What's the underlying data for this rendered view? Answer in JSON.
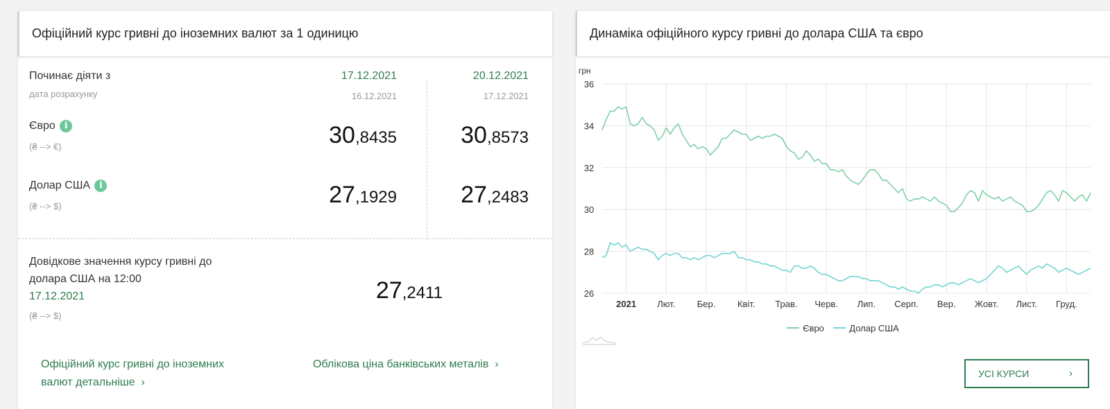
{
  "left": {
    "title": "Офіційний курс гривні до іноземних валют за 1 одиницю",
    "starts_label": "Починає діяти з",
    "calc_label": "дата розрахунку",
    "col1": {
      "date": "17.12.2021",
      "calc_date": "16.12.2021"
    },
    "col2": {
      "date": "20.12.2021",
      "calc_date": "17.12.2021"
    },
    "rows": [
      {
        "name": "Євро",
        "sub": "(₴ --> €)",
        "info_icon": "i",
        "v1_int": "30",
        "v1_frac": ",8435",
        "v2_int": "30",
        "v2_frac": ",8573"
      },
      {
        "name": "Долар США",
        "sub": "(₴ --> $)",
        "info_icon": "i",
        "v1_int": "27",
        "v1_frac": ",1929",
        "v2_int": "27",
        "v2_frac": ",2483"
      }
    ],
    "ref": {
      "line1": "Довідкове значення курсу гривні до",
      "line2": "долара США на 12:00",
      "date": "17.12.2021",
      "sub": "(₴ --> $)",
      "value_int": "27",
      "value_frac": ",2411"
    },
    "links": {
      "detail_line1": "Офіційний курс гривні до іноземних",
      "detail_line2": "валют детальніше",
      "metals": "Облікова ціна банківських металів",
      "chevron": "›"
    }
  },
  "right": {
    "title": "Динаміка офіційного курсу гривні до долара США та євро",
    "all_rates_button": "УСІ КУРСИ",
    "chevron": "›"
  },
  "colors": {
    "accent": "#2e7d4f",
    "euro_line": "#7fcfa8",
    "usd_line": "#72d4cf",
    "info": "#6cc89a"
  },
  "chart_data": {
    "type": "line",
    "ylabel": "грн",
    "ylim": [
      26,
      36
    ],
    "yticks": [
      26,
      28,
      30,
      32,
      34,
      36
    ],
    "x_tick_labels": [
      "2021",
      "Лют.",
      "Бер.",
      "Квіт.",
      "Трав.",
      "Черв.",
      "Лип.",
      "Серп.",
      "Вер.",
      "Жовт.",
      "Лист.",
      "Груд."
    ],
    "x_range_months": [
      -0.6,
      11.6
    ],
    "grid": true,
    "legend_position": "bottom",
    "series": [
      {
        "name": "Євро",
        "color": "#7fcfa8",
        "x": [
          -0.6,
          -0.5,
          -0.4,
          -0.3,
          -0.2,
          -0.1,
          0.0,
          0.1,
          0.2,
          0.3,
          0.4,
          0.5,
          0.6,
          0.7,
          0.8,
          0.9,
          1.0,
          1.1,
          1.2,
          1.3,
          1.4,
          1.5,
          1.6,
          1.7,
          1.8,
          1.9,
          2.0,
          2.1,
          2.2,
          2.3,
          2.4,
          2.5,
          2.6,
          2.7,
          2.8,
          2.9,
          3.0,
          3.1,
          3.2,
          3.3,
          3.4,
          3.5,
          3.6,
          3.7,
          3.8,
          3.9,
          4.0,
          4.1,
          4.2,
          4.3,
          4.4,
          4.5,
          4.6,
          4.7,
          4.8,
          4.9,
          5.0,
          5.1,
          5.2,
          5.3,
          5.4,
          5.5,
          5.6,
          5.7,
          5.8,
          5.9,
          6.0,
          6.1,
          6.2,
          6.3,
          6.4,
          6.5,
          6.6,
          6.7,
          6.8,
          6.9,
          7.0,
          7.1,
          7.2,
          7.3,
          7.4,
          7.5,
          7.6,
          7.7,
          7.8,
          7.9,
          8.0,
          8.1,
          8.2,
          8.3,
          8.4,
          8.5,
          8.6,
          8.7,
          8.8,
          8.9,
          9.0,
          9.1,
          9.2,
          9.3,
          9.4,
          9.5,
          9.6,
          9.7,
          9.8,
          9.9,
          10.0,
          10.1,
          10.2,
          10.3,
          10.4,
          10.5,
          10.6,
          10.7,
          10.8,
          10.9,
          11.0,
          11.1,
          11.2,
          11.3,
          11.4,
          11.5,
          11.6
        ],
        "values": [
          33.8,
          34.3,
          34.7,
          34.7,
          34.9,
          34.8,
          34.9,
          34.1,
          34.0,
          34.1,
          34.4,
          34.1,
          34.0,
          33.8,
          33.3,
          33.5,
          33.9,
          33.6,
          33.9,
          34.1,
          33.6,
          33.3,
          33.0,
          33.1,
          32.9,
          33.0,
          32.9,
          32.6,
          32.8,
          33.0,
          33.4,
          33.4,
          33.6,
          33.8,
          33.7,
          33.6,
          33.6,
          33.3,
          33.4,
          33.5,
          33.4,
          33.5,
          33.5,
          33.6,
          33.5,
          33.4,
          33.0,
          32.8,
          32.7,
          32.4,
          32.5,
          32.8,
          32.6,
          32.3,
          32.4,
          32.2,
          32.2,
          31.9,
          31.9,
          31.8,
          31.9,
          31.6,
          31.4,
          31.3,
          31.2,
          31.4,
          31.7,
          31.9,
          31.9,
          31.7,
          31.4,
          31.4,
          31.2,
          31.0,
          30.8,
          31.0,
          30.5,
          30.4,
          30.5,
          30.5,
          30.6,
          30.5,
          30.4,
          30.6,
          30.4,
          30.3,
          30.2,
          29.9,
          29.9,
          30.1,
          30.3,
          30.7,
          30.9,
          30.8,
          30.4,
          30.9,
          30.7,
          30.6,
          30.5,
          30.6,
          30.4,
          30.5,
          30.6,
          30.4,
          30.3,
          30.2,
          29.9,
          29.9,
          30.0,
          30.2,
          30.5,
          30.8,
          30.9,
          30.7,
          30.4,
          30.9,
          30.8,
          30.6,
          30.4,
          30.6,
          30.7,
          30.4,
          30.8
        ]
      },
      {
        "name": "Долар США",
        "color": "#72d4cf",
        "x": [
          -0.6,
          -0.5,
          -0.4,
          -0.3,
          -0.2,
          -0.1,
          0.0,
          0.1,
          0.2,
          0.3,
          0.4,
          0.5,
          0.6,
          0.7,
          0.8,
          0.9,
          1.0,
          1.1,
          1.2,
          1.3,
          1.4,
          1.5,
          1.6,
          1.7,
          1.8,
          1.9,
          2.0,
          2.1,
          2.2,
          2.3,
          2.4,
          2.5,
          2.6,
          2.7,
          2.8,
          2.9,
          3.0,
          3.1,
          3.2,
          3.3,
          3.4,
          3.5,
          3.6,
          3.7,
          3.8,
          3.9,
          4.0,
          4.1,
          4.2,
          4.3,
          4.4,
          4.5,
          4.6,
          4.7,
          4.8,
          4.9,
          5.0,
          5.1,
          5.2,
          5.3,
          5.4,
          5.5,
          5.6,
          5.7,
          5.8,
          5.9,
          6.0,
          6.1,
          6.2,
          6.3,
          6.4,
          6.5,
          6.6,
          6.7,
          6.8,
          6.9,
          7.0,
          7.1,
          7.2,
          7.3,
          7.4,
          7.5,
          7.6,
          7.7,
          7.8,
          7.9,
          8.0,
          8.1,
          8.2,
          8.3,
          8.4,
          8.5,
          8.6,
          8.7,
          8.8,
          8.9,
          9.0,
          9.1,
          9.2,
          9.3,
          9.4,
          9.5,
          9.6,
          9.7,
          9.8,
          9.9,
          10.0,
          10.1,
          10.2,
          10.3,
          10.4,
          10.5,
          10.6,
          10.7,
          10.8,
          10.9,
          11.0,
          11.1,
          11.2,
          11.3,
          11.4,
          11.5,
          11.6
        ],
        "values": [
          27.7,
          27.8,
          28.4,
          28.3,
          28.4,
          28.2,
          28.3,
          28.0,
          28.1,
          28.2,
          28.1,
          28.1,
          28.0,
          27.9,
          27.6,
          27.8,
          27.9,
          27.8,
          27.9,
          27.9,
          27.7,
          27.7,
          27.6,
          27.7,
          27.6,
          27.7,
          27.8,
          27.8,
          27.7,
          27.8,
          27.9,
          27.9,
          27.9,
          28.0,
          27.7,
          27.7,
          27.6,
          27.6,
          27.5,
          27.5,
          27.4,
          27.4,
          27.3,
          27.3,
          27.2,
          27.1,
          27.1,
          27.0,
          27.3,
          27.3,
          27.2,
          27.2,
          27.3,
          27.2,
          27.0,
          26.9,
          26.9,
          26.8,
          26.7,
          26.6,
          26.6,
          26.7,
          26.8,
          26.8,
          26.8,
          26.7,
          26.7,
          26.6,
          26.6,
          26.6,
          26.5,
          26.4,
          26.3,
          26.3,
          26.2,
          26.3,
          26.2,
          26.1,
          26.1,
          26.0,
          26.2,
          26.3,
          26.3,
          26.4,
          26.4,
          26.3,
          26.4,
          26.5,
          26.5,
          26.4,
          26.5,
          26.6,
          26.7,
          26.6,
          26.5,
          26.6,
          26.7,
          26.9,
          27.1,
          27.3,
          27.2,
          27.0,
          27.1,
          27.2,
          27.3,
          27.1,
          26.9,
          27.1,
          27.2,
          27.3,
          27.2,
          27.4,
          27.3,
          27.2,
          27.0,
          27.1,
          27.2,
          27.1,
          27.0,
          26.9,
          27.0,
          27.1,
          27.2
        ]
      }
    ]
  }
}
